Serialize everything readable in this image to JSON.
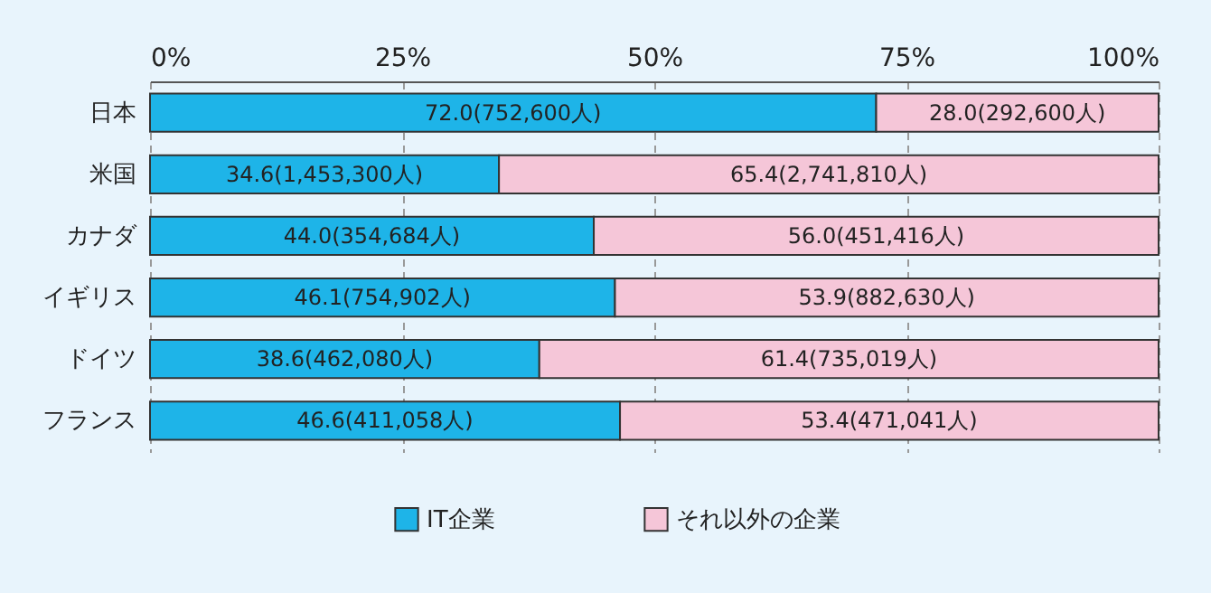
{
  "chart_data": {
    "type": "bar",
    "orientation": "horizontal",
    "stacked": true,
    "categories": [
      "日本",
      "米国",
      "カナダ",
      "イギリス",
      "ドイツ",
      "フランス"
    ],
    "series": [
      {
        "name": "IT企業",
        "color": "#1eb4e8",
        "values": [
          72.0,
          34.6,
          44.0,
          46.1,
          38.6,
          46.6
        ],
        "value_labels": [
          "72.0(752,600人)",
          "34.6(1,453,300人)",
          "44.0(354,684人)",
          "46.1(754,902人)",
          "38.6(462,080人)",
          "46.6(411,058人)"
        ]
      },
      {
        "name": "それ以外の企業",
        "color": "#f5c6d8",
        "values": [
          28.0,
          65.4,
          56.0,
          53.9,
          61.4,
          53.4
        ],
        "value_labels": [
          "28.0(292,600人)",
          "65.4(2,741,810人)",
          "56.0(451,416人)",
          "53.9(882,630人)",
          "61.4(735,019人)",
          "53.4(471,041人)"
        ]
      }
    ],
    "xlim": [
      0,
      100
    ],
    "xticks": [
      {
        "value": 0,
        "label": "0%"
      },
      {
        "value": 25,
        "label": "25%"
      },
      {
        "value": 50,
        "label": "50%"
      },
      {
        "value": 75,
        "label": "75%"
      },
      {
        "value": 100,
        "label": "100%"
      }
    ],
    "grid": "x",
    "legend": "bottom"
  }
}
